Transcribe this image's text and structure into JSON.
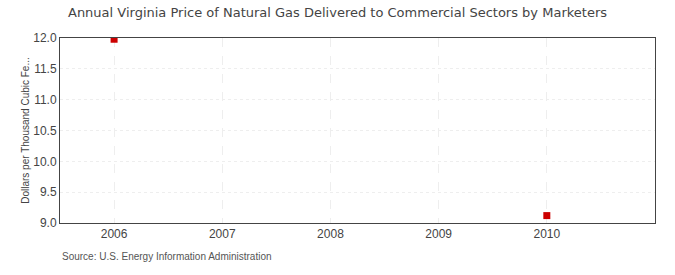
{
  "chart_data": {
    "type": "scatter",
    "title": "Annual Virginia Price of Natural Gas Delivered to Commercial Sectors by Marketers",
    "ylabel": "Dollars per Thousand Cubic Fe...",
    "annotations": [
      "Source: U.S. Energy Information Administration"
    ],
    "x": [
      2006,
      2010
    ],
    "values": [
      11.98,
      9.12
    ],
    "color": "#cc0000",
    "marker": "square",
    "xlim": [
      2005.5,
      2011.0
    ],
    "xticks": [
      2006,
      2007,
      2008,
      2009,
      2010
    ],
    "ylim": [
      9.0,
      12.0
    ],
    "yticks": [
      {
        "value": 9.0,
        "label": "9.0"
      },
      9.5,
      {
        "value": 10.0,
        "label": "10.0"
      },
      10.5,
      {
        "value": 11.0,
        "label": "11.0"
      },
      11.5,
      {
        "value": 12.0,
        "label": "12.0"
      }
    ],
    "grid": true
  }
}
